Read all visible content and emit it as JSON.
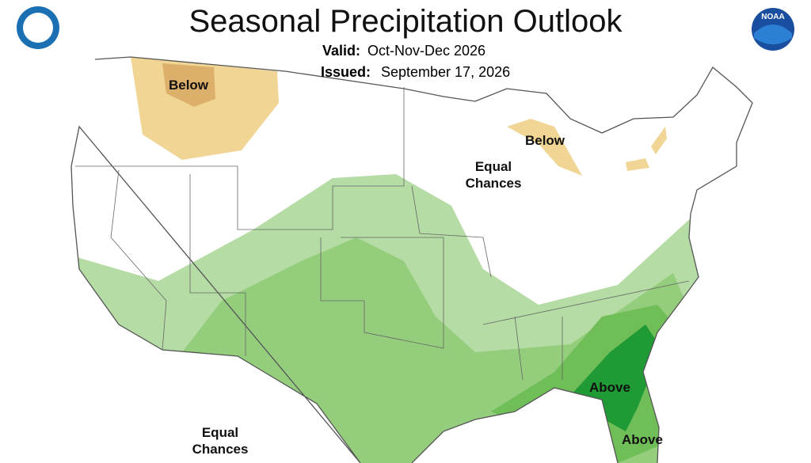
{
  "header": {
    "title": "Seasonal Precipitation Outlook",
    "valid_label": "Valid:",
    "valid_value": "Oct-Nov-Dec 2026",
    "issued_label": "Issued:",
    "issued_value": "September 17, 2026",
    "logo_text": "NOAA"
  },
  "regions": [
    {
      "label": [
        "Below"
      ]
    },
    {
      "label": [
        "Below"
      ]
    },
    {
      "label": [
        "Equal",
        "Chances"
      ]
    },
    {
      "label": [
        "Above"
      ]
    },
    {
      "label": [
        "Above"
      ]
    },
    {
      "label": [
        "Equal",
        "Chances"
      ]
    }
  ]
}
